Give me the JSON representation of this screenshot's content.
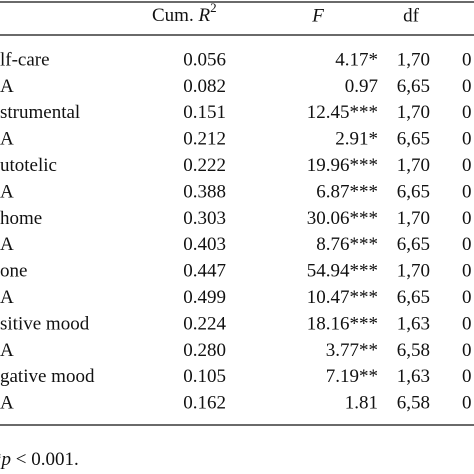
{
  "table": {
    "header": {
      "cum_r2": {
        "prefix": "Cum. ",
        "var": "R",
        "sup": "2"
      },
      "f": "F",
      "df": "df"
    },
    "rows": [
      [
        "lf-care",
        "0.056",
        "4.17*",
        "1,70",
        "0"
      ],
      [
        "A",
        "0.082",
        "0.97",
        "6,65",
        "0"
      ],
      [
        "strumental",
        "0.151",
        "12.45***",
        "1,70",
        "0"
      ],
      [
        "A",
        "0.212",
        "2.91*",
        "6,65",
        "0"
      ],
      [
        "utotelic",
        "0.222",
        "19.96***",
        "1,70",
        "0"
      ],
      [
        "A",
        "0.388",
        "6.87***",
        "6,65",
        "0"
      ],
      [
        "home",
        "0.303",
        "30.06***",
        "1,70",
        "0"
      ],
      [
        "A",
        "0.403",
        "8.76***",
        "6,65",
        "0"
      ],
      [
        "one",
        "0.447",
        "54.94***",
        "1,70",
        "0"
      ],
      [
        "A",
        "0.499",
        "10.47***",
        "6,65",
        "0"
      ],
      [
        "sitive mood",
        "0.224",
        "18.16***",
        "1,63",
        "0"
      ],
      [
        "A",
        "0.280",
        "3.77**",
        "6,58",
        "0"
      ],
      [
        "gative mood",
        "0.105",
        "7.19**",
        "1,63",
        "0"
      ],
      [
        "A",
        "0.162",
        "1.81",
        "6,58",
        "0"
      ]
    ],
    "footnote": {
      "mark": "*",
      "var": "p",
      "rest": " < 0.001."
    }
  }
}
